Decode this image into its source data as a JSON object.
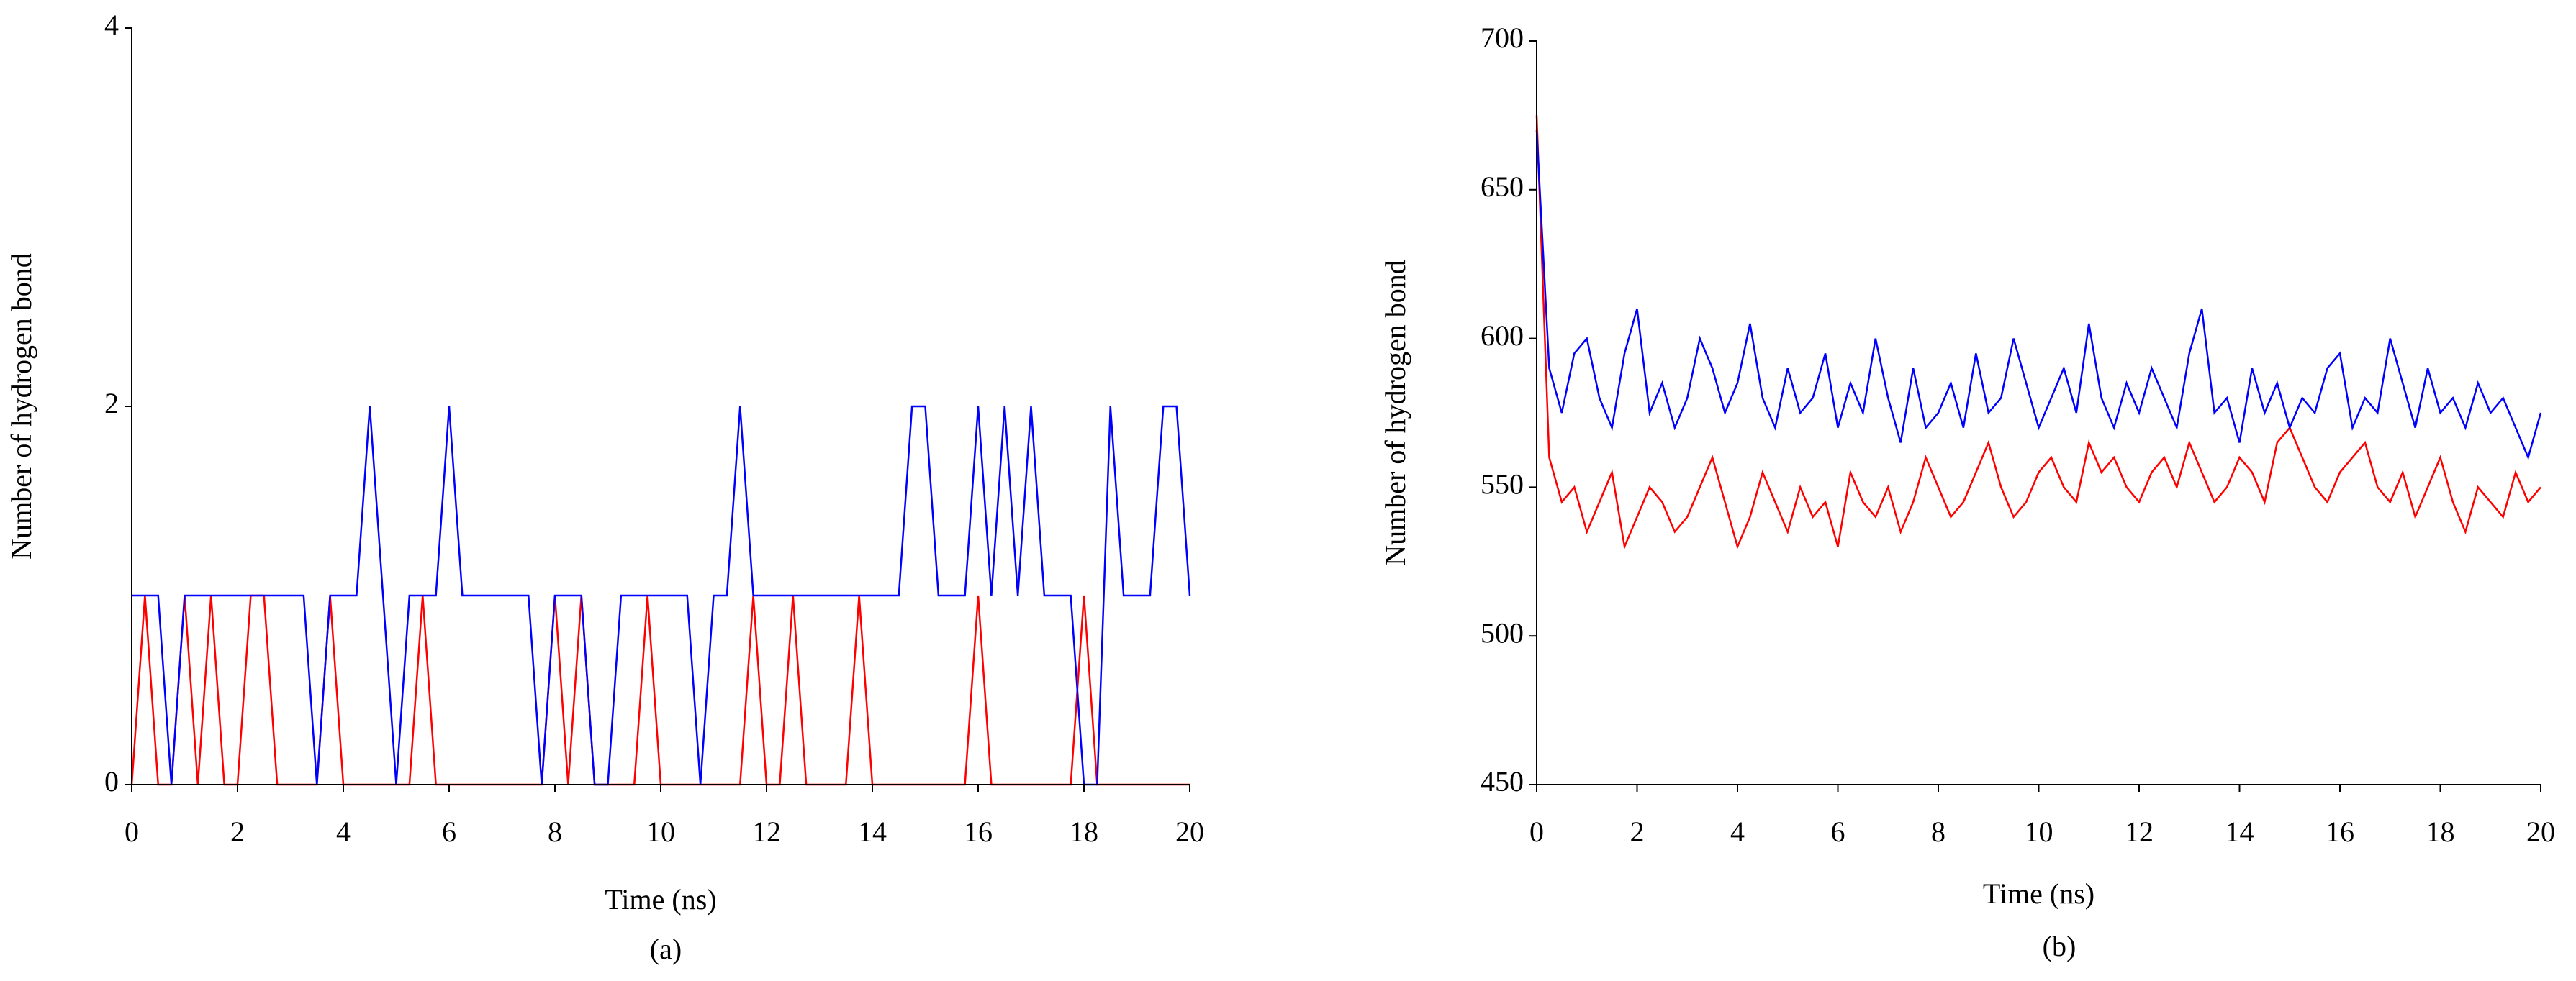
{
  "chart_data": [
    {
      "type": "line",
      "label": "(a)",
      "x_label": "Time (ns)",
      "y_label": "Number of hydrogen bond",
      "x": [
        0,
        0.25,
        0.5,
        0.75,
        1,
        1.25,
        1.5,
        1.75,
        2,
        2.25,
        2.5,
        2.75,
        3,
        3.25,
        3.5,
        3.75,
        4,
        4.25,
        4.5,
        4.75,
        5,
        5.25,
        5.5,
        5.75,
        6,
        6.25,
        6.5,
        6.75,
        7,
        7.25,
        7.5,
        7.75,
        8,
        8.25,
        8.5,
        8.75,
        9,
        9.25,
        9.5,
        9.75,
        10,
        10.25,
        10.5,
        10.75,
        11,
        11.25,
        11.5,
        11.75,
        12,
        12.25,
        12.5,
        12.75,
        13,
        13.25,
        13.5,
        13.75,
        14,
        14.25,
        14.5,
        14.75,
        15,
        15.25,
        15.5,
        15.75,
        16,
        16.25,
        16.5,
        16.75,
        17,
        17.25,
        17.5,
        17.75,
        18,
        18.25,
        18.5,
        18.75,
        19,
        19.25,
        19.5,
        19.75,
        20
      ],
      "series": [
        {
          "color": "#ff0000",
          "values": [
            0,
            1,
            0,
            0,
            1,
            0,
            1,
            0,
            0,
            1,
            1,
            0,
            0,
            0,
            0,
            1,
            0,
            0,
            0,
            0,
            0,
            0,
            1,
            0,
            0,
            0,
            0,
            0,
            0,
            0,
            0,
            0,
            1,
            0,
            1,
            0,
            0,
            0,
            0,
            1,
            0,
            0,
            0,
            0,
            0,
            0,
            0,
            1,
            0,
            0,
            1,
            0,
            0,
            0,
            0,
            1,
            0,
            0,
            0,
            0,
            0,
            0,
            0,
            0,
            1,
            0,
            0,
            0,
            0,
            0,
            0,
            0,
            1,
            0,
            0,
            0,
            0,
            0,
            0,
            0,
            0
          ]
        },
        {
          "color": "#0000ff",
          "values": [
            1,
            1,
            1,
            0,
            1,
            1,
            1,
            1,
            1,
            1,
            1,
            1,
            1,
            1,
            0,
            1,
            1,
            1,
            2,
            1,
            0,
            1,
            1,
            1,
            2,
            1,
            1,
            1,
            1,
            1,
            1,
            0,
            1,
            1,
            1,
            0,
            0,
            1,
            1,
            1,
            1,
            1,
            1,
            0,
            1,
            1,
            2,
            1,
            1,
            1,
            1,
            1,
            1,
            1,
            1,
            1,
            1,
            1,
            1,
            2,
            2,
            1,
            1,
            1,
            2,
            1,
            2,
            1,
            2,
            1,
            1,
            1,
            0,
            0,
            2,
            1,
            1,
            1,
            2,
            2,
            1
          ]
        }
      ],
      "xlim": [
        0,
        20
      ],
      "xticks": [
        0,
        2,
        4,
        6,
        8,
        10,
        12,
        14,
        16,
        18,
        20
      ],
      "ylim": [
        0,
        4
      ],
      "yticks": [
        0,
        2,
        4
      ]
    },
    {
      "type": "line",
      "label": "(b)",
      "x_label": "Time (ns)",
      "y_label": "Number of hydrogen bond",
      "x": [
        0,
        0.25,
        0.5,
        0.75,
        1,
        1.25,
        1.5,
        1.75,
        2,
        2.25,
        2.5,
        2.75,
        3,
        3.25,
        3.5,
        3.75,
        4,
        4.25,
        4.5,
        4.75,
        5,
        5.25,
        5.5,
        5.75,
        6,
        6.25,
        6.5,
        6.75,
        7,
        7.25,
        7.5,
        7.75,
        8,
        8.25,
        8.5,
        8.75,
        9,
        9.25,
        9.5,
        9.75,
        10,
        10.25,
        10.5,
        10.75,
        11,
        11.25,
        11.5,
        11.75,
        12,
        12.25,
        12.5,
        12.75,
        13,
        13.25,
        13.5,
        13.75,
        14,
        14.25,
        14.5,
        14.75,
        15,
        15.25,
        15.5,
        15.75,
        16,
        16.25,
        16.5,
        16.75,
        17,
        17.25,
        17.5,
        17.75,
        18,
        18.25,
        18.5,
        18.75,
        19,
        19.25,
        19.5,
        19.75,
        20
      ],
      "series": [
        {
          "color": "#ff0000",
          "values": [
            675,
            560,
            545,
            550,
            535,
            545,
            555,
            530,
            540,
            550,
            545,
            535,
            540,
            550,
            560,
            545,
            530,
            540,
            555,
            545,
            535,
            550,
            540,
            545,
            530,
            555,
            545,
            540,
            550,
            535,
            545,
            560,
            550,
            540,
            545,
            555,
            565,
            550,
            540,
            545,
            555,
            560,
            550,
            545,
            565,
            555,
            560,
            550,
            545,
            555,
            560,
            550,
            565,
            555,
            545,
            550,
            560,
            555,
            545,
            565,
            570,
            560,
            550,
            545,
            555,
            560,
            565,
            550,
            545,
            555,
            540,
            550,
            560,
            545,
            535,
            550,
            545,
            540,
            555,
            545,
            550
          ]
        },
        {
          "color": "#0000ff",
          "values": [
            670,
            590,
            575,
            595,
            600,
            580,
            570,
            595,
            610,
            575,
            585,
            570,
            580,
            600,
            590,
            575,
            585,
            605,
            580,
            570,
            590,
            575,
            580,
            595,
            570,
            585,
            575,
            600,
            580,
            565,
            590,
            570,
            575,
            585,
            570,
            595,
            575,
            580,
            600,
            585,
            570,
            580,
            590,
            575,
            605,
            580,
            570,
            585,
            575,
            590,
            580,
            570,
            595,
            610,
            575,
            580,
            565,
            590,
            575,
            585,
            570,
            580,
            575,
            590,
            595,
            570,
            580,
            575,
            600,
            585,
            570,
            590,
            575,
            580,
            570,
            585,
            575,
            580,
            570,
            560,
            575
          ]
        }
      ],
      "xlim": [
        0,
        20
      ],
      "xticks": [
        0,
        2,
        4,
        6,
        8,
        10,
        12,
        14,
        16,
        18,
        20
      ],
      "ylim": [
        450,
        700
      ],
      "yticks": [
        450,
        500,
        550,
        600,
        650,
        700
      ]
    }
  ]
}
